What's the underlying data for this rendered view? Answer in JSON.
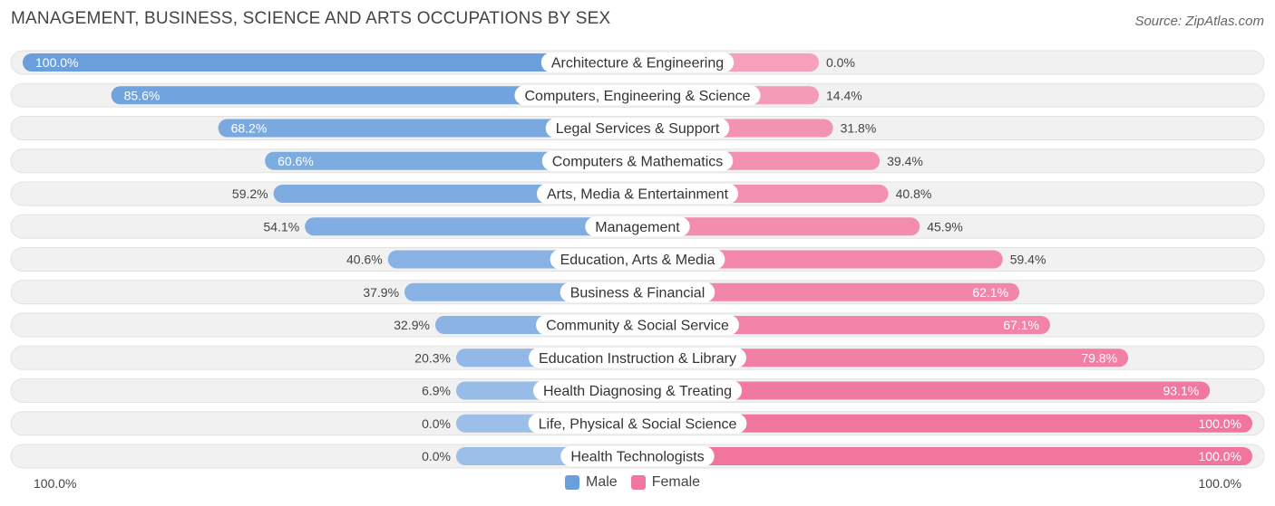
{
  "header": {
    "title": "MANAGEMENT, BUSINESS, SCIENCE AND ARTS OCCUPATIONS BY SEX",
    "source": "Source: ZipAtlas.com"
  },
  "axis": {
    "left_label": "100.0%",
    "right_label": "100.0%"
  },
  "legend": {
    "male_label": "Male",
    "female_label": "Female"
  },
  "colors": {
    "male": "#6a9fdc",
    "female": "#f0769e",
    "row_bg": "#f0f0f0"
  },
  "chart_data": {
    "type": "bar",
    "orientation": "horizontal-diverging",
    "title": "MANAGEMENT, BUSINESS, SCIENCE AND ARTS OCCUPATIONS BY SEX",
    "xlim": [
      -100,
      100
    ],
    "categories": [
      "Architecture & Engineering",
      "Computers, Engineering & Science",
      "Legal Services & Support",
      "Computers & Mathematics",
      "Arts, Media & Entertainment",
      "Management",
      "Education, Arts & Media",
      "Business & Financial",
      "Community & Social Service",
      "Education Instruction & Library",
      "Health Diagnosing & Treating",
      "Life, Physical & Social Science",
      "Health Technologists"
    ],
    "series": [
      {
        "name": "Male",
        "values": [
          100.0,
          85.6,
          68.2,
          60.6,
          59.2,
          54.1,
          40.6,
          37.9,
          32.9,
          20.3,
          6.9,
          0.0,
          0.0
        ],
        "labels": [
          "100.0%",
          "85.6%",
          "68.2%",
          "60.6%",
          "59.2%",
          "54.1%",
          "40.6%",
          "37.9%",
          "32.9%",
          "20.3%",
          "6.9%",
          "0.0%",
          "0.0%"
        ]
      },
      {
        "name": "Female",
        "values": [
          0.0,
          14.4,
          31.8,
          39.4,
          40.8,
          45.9,
          59.4,
          62.1,
          67.1,
          79.8,
          93.1,
          100.0,
          100.0
        ],
        "labels": [
          "0.0%",
          "14.4%",
          "31.8%",
          "39.4%",
          "40.8%",
          "45.9%",
          "59.4%",
          "62.1%",
          "67.1%",
          "79.8%",
          "93.1%",
          "100.0%",
          "100.0%"
        ]
      }
    ],
    "legend_position": "bottom-center"
  }
}
